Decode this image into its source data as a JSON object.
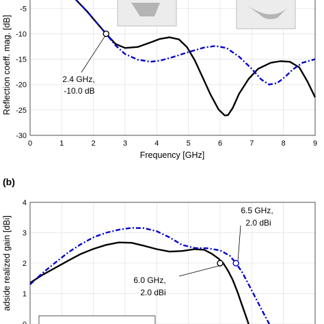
{
  "chart_data": [
    {
      "panel_label": "",
      "type": "line",
      "xlabel": "Frequency [GHz]",
      "ylabel": "Reflection coeff. mag. [dB]",
      "xlim": [
        0,
        9
      ],
      "ylim": [
        -30,
        -2
      ],
      "xticks": [
        "0",
        "1",
        "2",
        "3",
        "4",
        "5",
        "6",
        "7",
        "8",
        "9"
      ],
      "yticks": [
        "-5",
        "-10",
        "-15",
        "-20",
        "-25",
        "-30"
      ],
      "grid": true,
      "colors": {
        "black": "#000000",
        "blue": "#0000cc",
        "gray": "#bdbdbd"
      },
      "series": [
        {
          "style": "solid",
          "color": "#000000",
          "x": [
            1.4,
            1.8,
            2.1,
            2.4,
            2.7,
            3.0,
            3.4,
            3.8,
            4.1,
            4.4,
            4.7,
            4.95,
            5.2,
            5.45,
            5.7,
            5.95,
            6.15,
            6.25,
            6.4,
            6.6,
            6.9,
            7.2,
            7.6,
            7.9,
            8.2,
            8.5,
            8.75,
            9.0
          ],
          "y": [
            -3.0,
            -5.6,
            -7.8,
            -10.0,
            -12.0,
            -12.8,
            -12.6,
            -11.7,
            -11.0,
            -10.7,
            -11.1,
            -12.6,
            -15.2,
            -18.6,
            -22.0,
            -24.9,
            -26.1,
            -26.0,
            -24.6,
            -21.8,
            -18.9,
            -16.9,
            -15.7,
            -15.4,
            -15.5,
            -16.6,
            -19.3,
            -22.5
          ]
        },
        {
          "style": "dash-dot",
          "color": "#0000cc",
          "x": [
            1.4,
            1.8,
            2.1,
            2.4,
            2.7,
            3.0,
            3.4,
            3.8,
            4.1,
            4.5,
            5.0,
            5.5,
            5.85,
            6.2,
            6.6,
            7.0,
            7.3,
            7.55,
            7.8,
            8.05,
            8.3,
            8.6,
            9.0
          ],
          "y": [
            -3.0,
            -5.6,
            -7.8,
            -10.0,
            -12.3,
            -14.0,
            -15.1,
            -15.5,
            -15.3,
            -14.6,
            -13.6,
            -12.7,
            -12.4,
            -12.8,
            -14.5,
            -16.9,
            -19.0,
            -20.0,
            -19.7,
            -18.5,
            -17.0,
            -15.7,
            -15.0
          ]
        }
      ],
      "marker": {
        "x": 2.4,
        "y": -10.0,
        "label_lines": [
          "2.4 GHz,",
          "-10.0 dB"
        ]
      }
    },
    {
      "panel_label": "(b)",
      "type": "line",
      "xlabel": "",
      "ylabel": "adside realized gain [dBi]",
      "xlim": [
        0,
        9
      ],
      "ylim": [
        0,
        4
      ],
      "xticks": [],
      "yticks": [
        "4",
        "3",
        "2",
        "1",
        "0"
      ],
      "grid": true,
      "colors": {
        "black": "#000000",
        "blue": "#0000cc"
      },
      "series": [
        {
          "style": "solid",
          "color": "#000000",
          "x": [
            0.0,
            0.4,
            0.8,
            1.2,
            1.6,
            2.0,
            2.4,
            2.8,
            3.2,
            3.6,
            4.0,
            4.4,
            4.8,
            5.2,
            5.5,
            5.75,
            5.95,
            6.1,
            6.25,
            6.4,
            6.55,
            6.7,
            6.85,
            7.0
          ],
          "y": [
            1.35,
            1.62,
            1.85,
            2.08,
            2.3,
            2.47,
            2.6,
            2.68,
            2.67,
            2.57,
            2.46,
            2.38,
            2.4,
            2.46,
            2.44,
            2.3,
            2.15,
            2.0,
            1.75,
            1.45,
            1.05,
            0.6,
            0.15,
            -0.3
          ]
        },
        {
          "style": "dash-dot",
          "color": "#0000cc",
          "x": [
            0.0,
            0.4,
            0.8,
            1.2,
            1.6,
            2.0,
            2.4,
            2.8,
            3.2,
            3.6,
            4.0,
            4.4,
            4.8,
            5.2,
            5.6,
            6.0,
            6.3,
            6.5,
            6.7,
            6.9,
            7.1,
            7.3,
            7.5,
            7.7
          ],
          "y": [
            1.3,
            1.68,
            2.02,
            2.35,
            2.62,
            2.85,
            3.0,
            3.1,
            3.16,
            3.15,
            3.05,
            2.85,
            2.6,
            2.5,
            2.49,
            2.42,
            2.25,
            2.0,
            1.7,
            1.3,
            0.9,
            0.5,
            0.1,
            -0.3
          ]
        }
      ],
      "markers": [
        {
          "x": 6.0,
          "y": 2.0,
          "label_lines": [
            "6.0 GHz,",
            "2.0 dBi"
          ]
        },
        {
          "x": 6.5,
          "y": 2.0,
          "label_lines": [
            "6.5 GHz,",
            "2.0 dBi"
          ]
        }
      ]
    }
  ]
}
